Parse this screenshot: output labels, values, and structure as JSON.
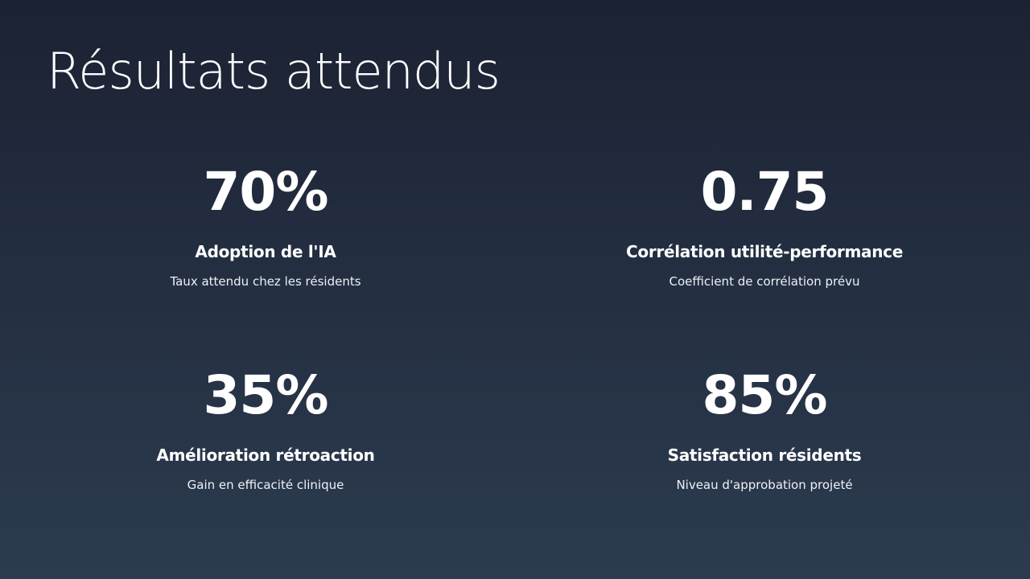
{
  "slide": {
    "title": "Résultats attendus"
  },
  "stats": [
    {
      "value": "70%",
      "label": "Adoption de l'IA",
      "description": "Taux attendu chez les résidents"
    },
    {
      "value": "0.75",
      "label": "Corrélation utilité-performance",
      "description": "Coefficient de corrélation prévu"
    },
    {
      "value": "35%",
      "label": "Amélioration rétroaction",
      "description": "Gain en efficacité clinique"
    },
    {
      "value": "85%",
      "label": "Satisfaction résidents",
      "description": "Niveau d'approbation projeté"
    }
  ],
  "colors": {
    "background_top": "#1b2233",
    "background_bottom": "#2c3b4f",
    "text": "#ffffff"
  }
}
